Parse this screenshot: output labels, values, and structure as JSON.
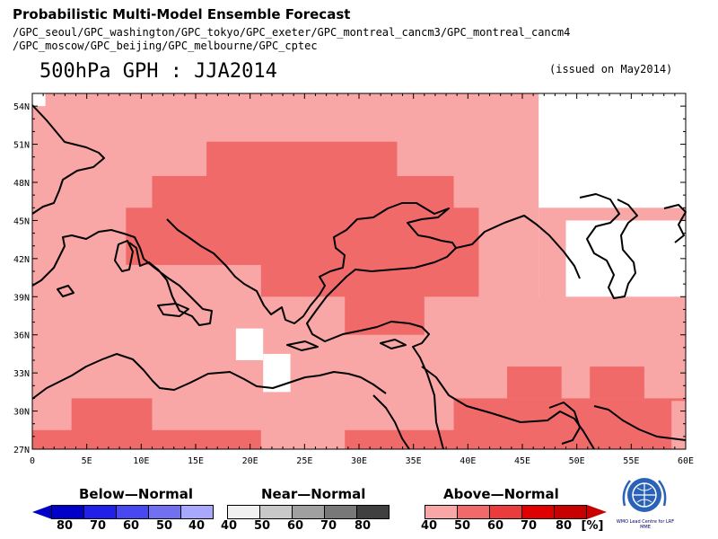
{
  "header": {
    "title": "Probabilistic Multi-Model Ensemble Forecast",
    "models_line1": "/GPC_seoul/GPC_washington/GPC_tokyo/GPC_exeter/GPC_montreal_cancm3/GPC_montreal_cancm4",
    "models_line2": "/GPC_moscow/GPC_beijing/GPC_melbourne/GPC_cptec",
    "main_title": "500hPa GPH : JJA2014",
    "issued": "(issued on May2014)"
  },
  "map": {
    "lon_range": [
      0,
      60
    ],
    "lat_range": [
      27,
      55
    ],
    "lon_ticks": [
      "0",
      "5E",
      "10E",
      "15E",
      "20E",
      "25E",
      "30E",
      "35E",
      "40E",
      "45E",
      "50E",
      "55E",
      "60E"
    ],
    "lat_ticks": [
      "27N",
      "30N",
      "33N",
      "36N",
      "39N",
      "42N",
      "45N",
      "48N",
      "51N",
      "54N"
    ],
    "colors": {
      "white": "#ffffff",
      "light": "#f9a6a6",
      "medium": "#f16a6a",
      "strong": "#e05555",
      "coast": "#000000"
    }
  },
  "legend": {
    "below": {
      "title": "Below—Normal",
      "labels": [
        "80",
        "70",
        "60",
        "50",
        "40"
      ],
      "colors": [
        "#0000c8",
        "#2020e8",
        "#4848f0",
        "#7070f0",
        "#a8a8ff"
      ]
    },
    "near": {
      "title": "Near—Normal",
      "labels": [
        "40",
        "50",
        "60",
        "70",
        "80"
      ],
      "colors": [
        "#f0f0f0",
        "#c8c8c8",
        "#a0a0a0",
        "#787878",
        "#404040"
      ]
    },
    "above": {
      "title": "Above—Normal",
      "labels": [
        "40",
        "50",
        "60",
        "70",
        "80"
      ],
      "colors": [
        "#f9a6a6",
        "#f16a6a",
        "#ea3c3c",
        "#e00000",
        "#c80000"
      ],
      "unit": "[%]"
    },
    "logo_caption": "WMO Lead Centre for LRF MME"
  }
}
